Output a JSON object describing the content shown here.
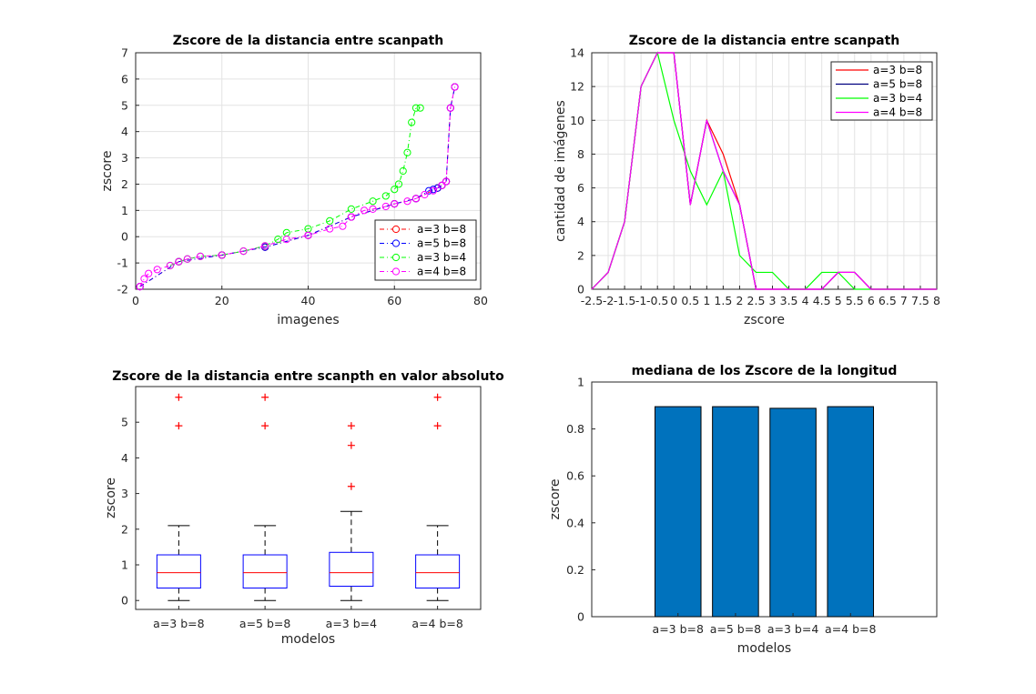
{
  "chart_data": [
    {
      "type": "scatter",
      "title": "Zscore de la distancia entre scanpath",
      "xlabel": "imagenes",
      "ylabel": "zscore",
      "xlim": [
        0,
        80
      ],
      "ylim": [
        -2,
        7
      ],
      "xticks": [
        "0",
        "20",
        "40",
        "60",
        "80"
      ],
      "yticks": [
        "-2",
        "-1",
        "0",
        "1",
        "2",
        "3",
        "4",
        "5",
        "6",
        "7"
      ],
      "grid": true,
      "legend_position": "bottom-right",
      "series": [
        {
          "name": "a=3 b=8",
          "color": "#ff0000",
          "x": [
            1,
            10,
            20,
            30,
            40,
            50,
            60,
            65,
            70,
            71,
            72,
            73,
            74
          ],
          "y": [
            -1.9,
            -0.95,
            -0.7,
            -0.4,
            0.05,
            0.75,
            1.25,
            1.45,
            1.85,
            1.95,
            2.1,
            4.9,
            5.7
          ]
        },
        {
          "name": "a=5 b=8",
          "color": "#0000ff",
          "x": [
            1,
            10,
            20,
            30,
            40,
            50,
            60,
            65,
            68,
            69,
            70,
            71,
            72,
            73,
            74
          ],
          "y": [
            -1.9,
            -0.95,
            -0.7,
            -0.4,
            0.05,
            0.75,
            1.25,
            1.45,
            1.75,
            1.8,
            1.85,
            1.95,
            2.1,
            4.9,
            5.7
          ]
        },
        {
          "name": "a=3 b=4",
          "color": "#00ff00",
          "x": [
            8,
            10,
            12,
            15,
            20,
            25,
            30,
            33,
            35,
            40,
            45,
            50,
            55,
            58,
            60,
            61,
            62,
            63,
            64,
            65,
            66
          ],
          "y": [
            -1.1,
            -0.95,
            -0.85,
            -0.75,
            -0.7,
            -0.55,
            -0.35,
            -0.1,
            0.15,
            0.3,
            0.6,
            1.05,
            1.35,
            1.55,
            1.8,
            2.0,
            2.5,
            3.2,
            4.35,
            4.9,
            4.9
          ]
        },
        {
          "name": "a=4 b=8",
          "color": "#ff00ff",
          "x": [
            1,
            2,
            3,
            5,
            8,
            10,
            12,
            15,
            20,
            25,
            30,
            35,
            40,
            45,
            48,
            50,
            53,
            55,
            58,
            60,
            63,
            65,
            67,
            69,
            71,
            72,
            73,
            74
          ],
          "y": [
            -1.9,
            -1.6,
            -1.4,
            -1.25,
            -1.1,
            -0.95,
            -0.85,
            -0.75,
            -0.7,
            -0.55,
            -0.35,
            -0.1,
            0.05,
            0.3,
            0.4,
            0.75,
            1.0,
            1.05,
            1.15,
            1.25,
            1.35,
            1.45,
            1.6,
            1.75,
            1.95,
            2.1,
            4.9,
            5.7
          ]
        }
      ]
    },
    {
      "type": "line",
      "title": "Zscore de la distancia entre scanpath",
      "xlabel": "zscore",
      "ylabel": "cantidad de imágenes",
      "xlim": [
        -2.5,
        8
      ],
      "ylim": [
        0,
        14
      ],
      "xticks": [
        "-2.5",
        "-2",
        "-1.5",
        "-1",
        "-0.5",
        "0",
        "0.5",
        "1",
        "1.5",
        "2",
        "2.5",
        "3",
        "3.5",
        "4",
        "4.5",
        "5",
        "5.5",
        "6",
        "6.5",
        "7",
        "7.5",
        "8"
      ],
      "yticks": [
        "0",
        "2",
        "4",
        "6",
        "8",
        "10",
        "12",
        "14"
      ],
      "grid": true,
      "legend_position": "top-right",
      "x": [
        -2.5,
        -2,
        -1.5,
        -1,
        -0.5,
        0,
        0.5,
        1,
        1.5,
        2,
        2.5,
        3,
        3.5,
        4,
        4.5,
        5,
        5.5,
        6,
        6.5,
        7,
        7.5,
        8
      ],
      "series": [
        {
          "name": "a=3 b=8",
          "color": "#ff0000",
          "values": [
            0,
            1,
            4,
            12,
            14,
            14,
            5,
            10,
            8,
            5,
            0,
            0,
            0,
            0,
            0,
            1,
            1,
            0,
            0,
            0,
            0,
            0
          ]
        },
        {
          "name": "a=5 b=8",
          "color": "#000080",
          "values": [
            0,
            1,
            4,
            12,
            14,
            14,
            5,
            10,
            7,
            5,
            0,
            0,
            0,
            0,
            0,
            1,
            1,
            0,
            0,
            0,
            0,
            0
          ]
        },
        {
          "name": "a=3 b=4",
          "color": "#00ff00",
          "values": [
            0,
            1,
            4,
            12,
            14,
            10,
            7,
            5,
            7,
            2,
            1,
            1,
            0,
            0,
            1,
            1,
            0,
            0,
            0,
            0,
            0,
            0
          ]
        },
        {
          "name": "a=4 b=8",
          "color": "#ff00ff",
          "values": [
            0,
            1,
            4,
            12,
            14,
            14,
            5,
            10,
            7,
            5,
            0,
            0,
            0,
            0,
            0,
            1,
            1,
            0,
            0,
            0,
            0,
            0
          ]
        }
      ]
    },
    {
      "type": "box",
      "title": "Zscore de la distancia entre scanpth en valor absoluto",
      "xlabel": "modelos",
      "ylabel": "zscore",
      "ylim": [
        -0.25,
        6.0
      ],
      "yticks": [
        "0",
        "1",
        "2",
        "3",
        "4",
        "5"
      ],
      "grid": false,
      "categories": [
        "a=3 b=8",
        "a=5 b=8",
        "a=3 b=4",
        "a=4 b=8"
      ],
      "boxes": [
        {
          "min": 0,
          "q1": 0.35,
          "median": 0.78,
          "q3": 1.28,
          "max": 2.1,
          "outliers": [
            4.9,
            5.7
          ]
        },
        {
          "min": 0,
          "q1": 0.35,
          "median": 0.78,
          "q3": 1.28,
          "max": 2.1,
          "outliers": [
            4.9,
            5.7
          ]
        },
        {
          "min": 0,
          "q1": 0.4,
          "median": 0.78,
          "q3": 1.35,
          "max": 2.5,
          "outliers": [
            3.2,
            4.35,
            4.9
          ]
        },
        {
          "min": 0,
          "q1": 0.35,
          "median": 0.78,
          "q3": 1.28,
          "max": 2.1,
          "outliers": [
            4.9,
            5.7
          ]
        }
      ],
      "colors": {
        "box": "#0000ff",
        "median": "#ff0000",
        "whisker": "#000000",
        "outlier": "#ff0000"
      }
    },
    {
      "type": "bar",
      "title": "mediana de los Zscore de la longitud",
      "xlabel": "modelos",
      "ylabel": "zscore",
      "ylim": [
        0,
        1
      ],
      "yticks": [
        "0",
        "0.2",
        "0.4",
        "0.6",
        "0.8",
        "1"
      ],
      "grid": false,
      "categories": [
        "a=3 b=8",
        "a=5 b=8",
        "a=3 b=4",
        "a=4 b=8"
      ],
      "values": [
        0.895,
        0.895,
        0.888,
        0.895
      ],
      "color": "#0072bd"
    }
  ]
}
